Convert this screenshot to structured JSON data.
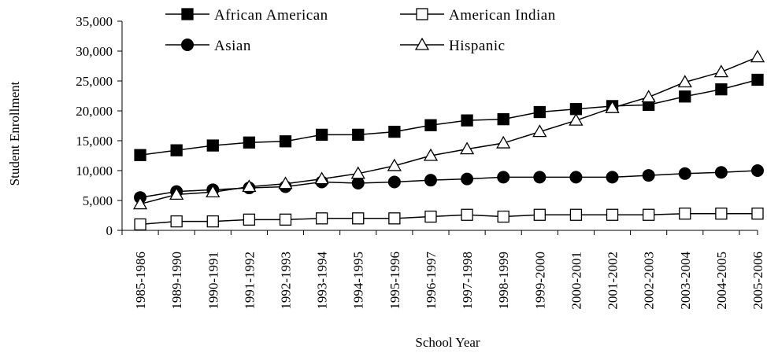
{
  "chart_data": {
    "type": "line",
    "xlabel": "School Year",
    "ylabel": "Student Enrollment",
    "ylim": [
      0,
      35000
    ],
    "yticks": [
      0,
      5000,
      10000,
      15000,
      20000,
      25000,
      30000,
      35000
    ],
    "ytick_labels": [
      "0",
      "5,000",
      "10,000",
      "15,000",
      "20,000",
      "25,000",
      "30,000",
      "35,000"
    ],
    "grid": false,
    "legend": "top",
    "categories": [
      "1985-1986",
      "1989-1990",
      "1990-1991",
      "1991-1992",
      "1992-1993",
      "1993-1994",
      "1994-1995",
      "1995-1996",
      "1996-1997",
      "1997-1998",
      "1998-1999",
      "1999-2000",
      "2000-2001",
      "2001-2002",
      "2002-2003",
      "2003-2004",
      "2004-2005",
      "2005-2006"
    ],
    "series": [
      {
        "name": "African American",
        "marker": "square-filled",
        "values": [
          12600,
          13400,
          14200,
          14700,
          14900,
          16000,
          16000,
          16500,
          17600,
          18400,
          18600,
          19800,
          20300,
          20800,
          21000,
          22400,
          23600,
          25200
        ]
      },
      {
        "name": "American Indian",
        "marker": "square-open",
        "values": [
          1000,
          1500,
          1500,
          1800,
          1800,
          2000,
          2000,
          2000,
          2300,
          2600,
          2300,
          2600,
          2600,
          2600,
          2600,
          2800,
          2800,
          2800
        ]
      },
      {
        "name": "Asian",
        "marker": "circle-filled",
        "values": [
          5500,
          6500,
          6800,
          7100,
          7300,
          8100,
          7900,
          8100,
          8400,
          8600,
          8900,
          8900,
          8900,
          8900,
          9200,
          9500,
          9700,
          10000
        ]
      },
      {
        "name": "Hispanic",
        "marker": "triangle-open",
        "values": [
          4400,
          6000,
          6400,
          7300,
          7800,
          8600,
          9500,
          10800,
          12500,
          13600,
          14600,
          16500,
          18400,
          20500,
          22300,
          24800,
          26500,
          29000
        ]
      }
    ]
  }
}
